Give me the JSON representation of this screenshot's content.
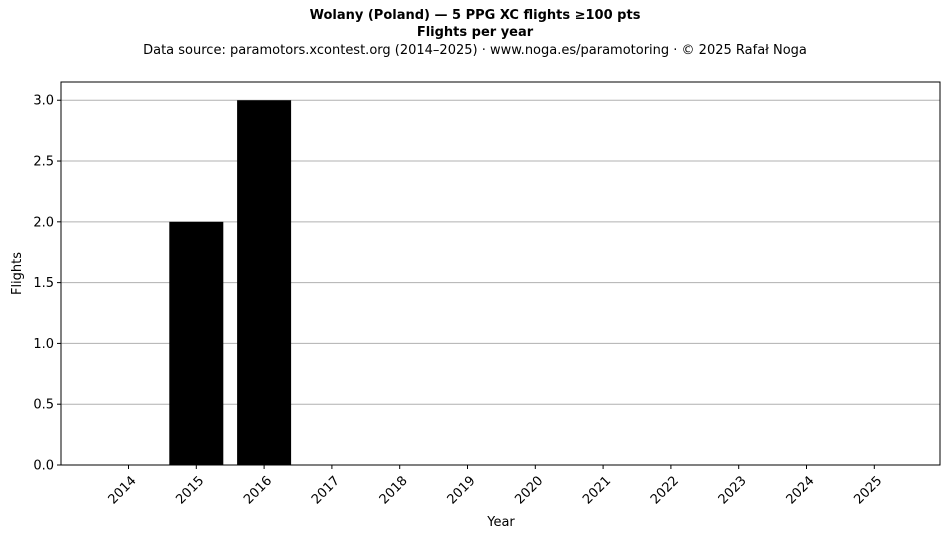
{
  "header": {
    "title": "Wolany (Poland)  —  5 PPG XC flights ≥100 pts",
    "subtitle": "Flights per year",
    "source": "Data source: paramotors.xcontest.org (2014–2025)  ·  www.noga.es/paramotoring  ·  © 2025 Rafał Noga"
  },
  "chart_data": {
    "type": "bar",
    "categories": [
      "2014",
      "2015",
      "2016",
      "2017",
      "2018",
      "2019",
      "2020",
      "2021",
      "2022",
      "2023",
      "2024",
      "2025"
    ],
    "values": [
      0,
      2,
      3,
      0,
      0,
      0,
      0,
      0,
      0,
      0,
      0,
      0
    ],
    "xlabel": "Year",
    "ylabel": "Flights",
    "ylim": [
      0,
      3.15
    ],
    "yticks": [
      "0.0",
      "0.5",
      "1.0",
      "1.5",
      "2.0",
      "2.5",
      "3.0"
    ],
    "grid": "horizontal",
    "bar_color": "#000000",
    "grid_color": "#b0b0b0"
  }
}
